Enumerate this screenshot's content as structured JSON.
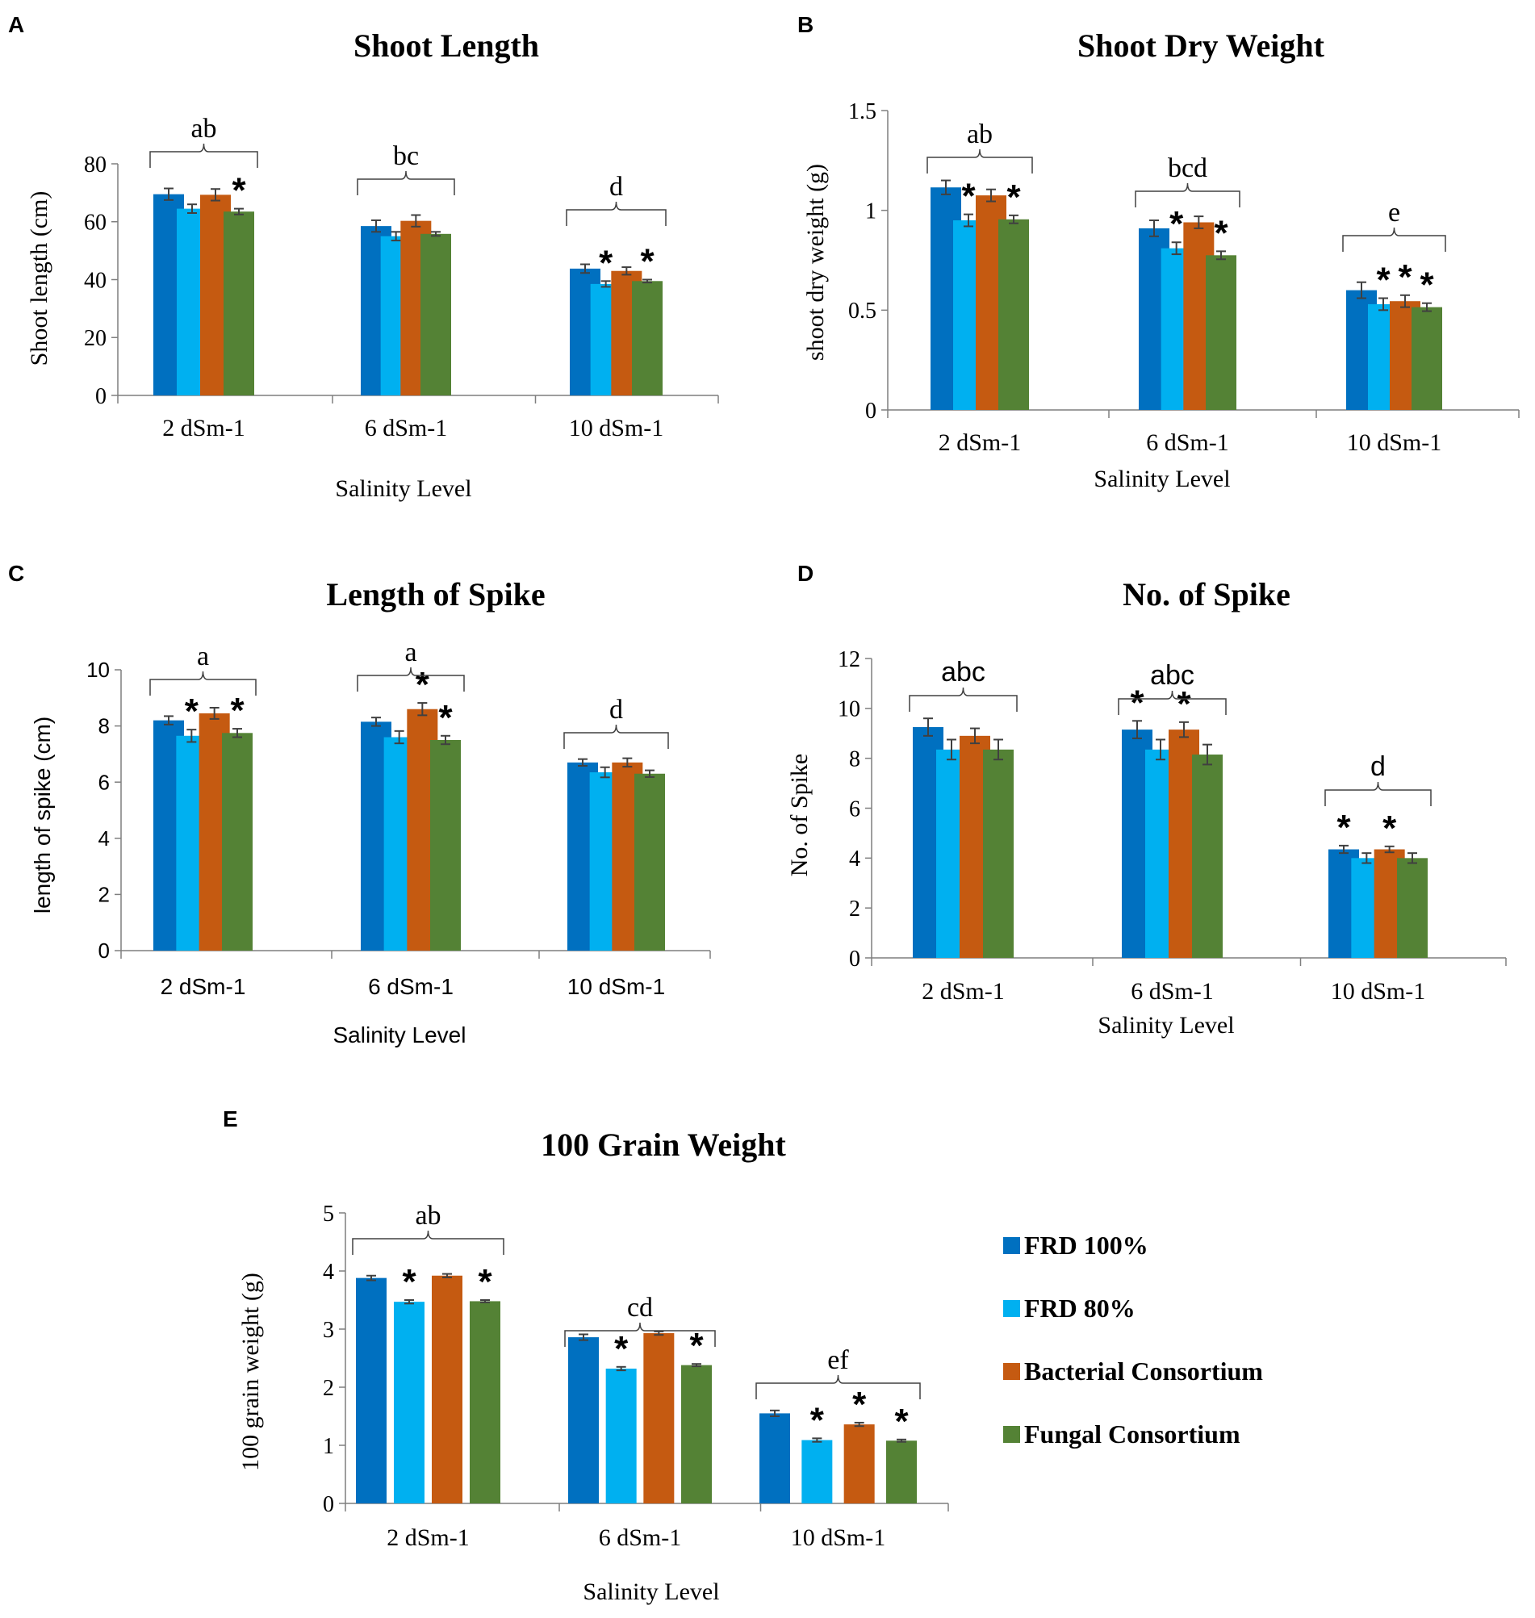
{
  "legend": [
    {
      "label": "FRD 100%",
      "color": "#0070C0"
    },
    {
      "label": "FRD 80%",
      "color": "#00B0F0"
    },
    {
      "label": "Bacterial Consortium",
      "color": "#C55A11"
    },
    {
      "label": "Fungal Consortium",
      "color": "#548235"
    }
  ],
  "chart_data": [
    {
      "panel": "A",
      "type": "bar",
      "title": "Shoot Length",
      "xlabel": "Salinity Level",
      "ylabel": "Shoot length (cm)",
      "categories": [
        "2 dSm-1",
        "6 dSm-1",
        "10 dSm-1"
      ],
      "ylim": [
        0,
        80
      ],
      "yticks": [
        0,
        20,
        40,
        60,
        80
      ],
      "tick_labels": [
        "0",
        "20",
        "40",
        "60",
        "80"
      ],
      "series": [
        {
          "name": "FRD 100%",
          "values": [
            69.5,
            58.5,
            43.8
          ],
          "errors": [
            2.0,
            2.0,
            1.5
          ],
          "stars": [
            false,
            false,
            false
          ]
        },
        {
          "name": "FRD 80%",
          "values": [
            64.5,
            55.0,
            38.5
          ],
          "errors": [
            1.5,
            1.5,
            1.0
          ],
          "stars": [
            false,
            false,
            true
          ]
        },
        {
          "name": "Bacterial Consortium",
          "values": [
            69.3,
            60.3,
            43.0
          ],
          "errors": [
            2.0,
            2.0,
            1.3
          ],
          "stars": [
            false,
            false,
            false
          ]
        },
        {
          "name": "Fungal Consortium",
          "values": [
            63.5,
            55.8,
            39.5
          ],
          "errors": [
            1.0,
            0.7,
            0.5
          ],
          "stars": [
            true,
            false,
            true
          ]
        }
      ],
      "group_letters": [
        "ab",
        "bc",
        "d"
      ]
    },
    {
      "panel": "B",
      "type": "bar",
      "title": "Shoot Dry Weight",
      "xlabel": "Salinity Level",
      "ylabel": "shoot dry weight (g)",
      "categories": [
        "2 dSm-1",
        "6 dSm-1",
        "10 dSm-1"
      ],
      "ylim": [
        0,
        1.5
      ],
      "yticks": [
        0,
        0.5,
        1,
        1.5
      ],
      "tick_labels": [
        "0",
        "0.5",
        "1",
        "1.5"
      ],
      "series": [
        {
          "name": "FRD 100%",
          "values": [
            1.115,
            0.91,
            0.6
          ],
          "errors": [
            0.035,
            0.04,
            0.04
          ],
          "stars": [
            false,
            false,
            false
          ]
        },
        {
          "name": "FRD 80%",
          "values": [
            0.95,
            0.81,
            0.53
          ],
          "errors": [
            0.03,
            0.03,
            0.03
          ],
          "stars": [
            true,
            true,
            true
          ]
        },
        {
          "name": "Bacterial Consortium",
          "values": [
            1.075,
            0.94,
            0.545
          ],
          "errors": [
            0.03,
            0.03,
            0.03
          ],
          "stars": [
            false,
            false,
            true
          ]
        },
        {
          "name": "Fungal Consortium",
          "values": [
            0.955,
            0.775,
            0.515
          ],
          "errors": [
            0.02,
            0.02,
            0.02
          ],
          "stars": [
            true,
            true,
            true
          ]
        }
      ],
      "group_letters": [
        "ab",
        "bcd",
        "e"
      ]
    },
    {
      "panel": "C",
      "type": "bar",
      "title": "Length of Spike",
      "xlabel": "Salinity Level",
      "ylabel": "length of spike (cm)",
      "categories": [
        "2 dSm-1",
        "6 dSm-1",
        "10 dSm-1"
      ],
      "ylim": [
        0,
        10
      ],
      "yticks": [
        0,
        2,
        4,
        6,
        8,
        10
      ],
      "tick_labels": [
        "0",
        "2",
        "4",
        "6",
        "8",
        "10"
      ],
      "series": [
        {
          "name": "FRD 100%",
          "values": [
            8.2,
            8.15,
            6.7
          ],
          "errors": [
            0.15,
            0.15,
            0.12
          ],
          "stars": [
            false,
            false,
            false
          ]
        },
        {
          "name": "FRD 80%",
          "values": [
            7.65,
            7.6,
            6.35
          ],
          "errors": [
            0.22,
            0.22,
            0.18
          ],
          "stars": [
            true,
            false,
            false
          ]
        },
        {
          "name": "Bacterial Consortium",
          "values": [
            8.45,
            8.6,
            6.7
          ],
          "errors": [
            0.2,
            0.22,
            0.15
          ],
          "stars": [
            false,
            true,
            false
          ]
        },
        {
          "name": "Fungal Consortium",
          "values": [
            7.75,
            7.5,
            6.3
          ],
          "errors": [
            0.15,
            0.15,
            0.12
          ],
          "stars": [
            true,
            true,
            false
          ]
        }
      ],
      "group_letters": [
        "a",
        "a",
        "d"
      ]
    },
    {
      "panel": "D",
      "type": "bar",
      "title": "No. of Spike",
      "xlabel": "Salinity Level",
      "ylabel": "No. of Spike",
      "categories": [
        "2 dSm-1",
        "6 dSm-1",
        "10 dSm-1"
      ],
      "ylim": [
        0,
        12
      ],
      "yticks": [
        0,
        2,
        4,
        6,
        8,
        10,
        12
      ],
      "tick_labels": [
        "0",
        "2",
        "4",
        "6",
        "8",
        "10",
        "12"
      ],
      "series": [
        {
          "name": "FRD 100%",
          "values": [
            9.25,
            9.15,
            4.35
          ],
          "errors": [
            0.35,
            0.35,
            0.15
          ],
          "stars": [
            false,
            true,
            true
          ]
        },
        {
          "name": "FRD 80%",
          "values": [
            8.35,
            8.35,
            4.0
          ],
          "errors": [
            0.4,
            0.4,
            0.2
          ],
          "stars": [
            false,
            false,
            false
          ]
        },
        {
          "name": "Bacterial Consortium",
          "values": [
            8.9,
            9.15,
            4.35
          ],
          "errors": [
            0.3,
            0.3,
            0.12
          ],
          "stars": [
            false,
            true,
            true
          ]
        },
        {
          "name": "Fungal Consortium",
          "values": [
            8.35,
            8.15,
            4.0
          ],
          "errors": [
            0.4,
            0.4,
            0.2
          ],
          "stars": [
            false,
            false,
            false
          ]
        }
      ],
      "group_letters": [
        "abc",
        "abc",
        "d"
      ]
    },
    {
      "panel": "E",
      "type": "bar",
      "title": "100 Grain Weight",
      "xlabel": "Salinity Level",
      "ylabel": "100 grain weight (g)",
      "categories": [
        "2 dSm-1",
        "6 dSm-1",
        "10 dSm-1"
      ],
      "ylim": [
        0,
        5
      ],
      "yticks": [
        0,
        1,
        2,
        3,
        4,
        5
      ],
      "tick_labels": [
        "0",
        "1",
        "2",
        "3",
        "4",
        "5"
      ],
      "series": [
        {
          "name": "FRD 100%",
          "values": [
            3.88,
            2.86,
            1.55
          ],
          "errors": [
            0.04,
            0.05,
            0.05
          ],
          "stars": [
            false,
            false,
            false
          ]
        },
        {
          "name": "FRD 80%",
          "values": [
            3.47,
            2.32,
            1.09
          ],
          "errors": [
            0.03,
            0.03,
            0.03
          ],
          "stars": [
            true,
            true,
            true
          ]
        },
        {
          "name": "Bacterial Consortium",
          "values": [
            3.92,
            2.93,
            1.36
          ],
          "errors": [
            0.03,
            0.03,
            0.03
          ],
          "stars": [
            false,
            false,
            true
          ]
        },
        {
          "name": "Fungal Consortium",
          "values": [
            3.48,
            2.38,
            1.08
          ],
          "errors": [
            0.02,
            0.02,
            0.02
          ],
          "stars": [
            true,
            true,
            true
          ]
        }
      ],
      "group_letters": [
        "ab",
        "cd",
        "ef"
      ]
    }
  ]
}
